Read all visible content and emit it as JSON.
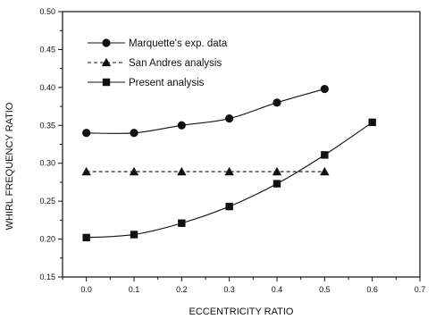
{
  "chart_data": {
    "type": "line",
    "xlabel": "ECCENTRICITY RATIO",
    "ylabel": "WHIRL FREQUENCY RATIO",
    "xlim": [
      -0.05,
      0.7
    ],
    "ylim": [
      0.15,
      0.5
    ],
    "x_ticks": [
      "0.0",
      "0.1",
      "0.2",
      "0.3",
      "0.4",
      "0.5",
      "0.6",
      "0.7"
    ],
    "y_ticks": [
      "0.15",
      "0.20",
      "0.25",
      "0.30",
      "0.35",
      "0.40",
      "0.45",
      "0.50"
    ],
    "grid": false,
    "legend_position": "top-left",
    "series": [
      {
        "name": "Marquette's exp. data",
        "marker": "circle",
        "line_style": "solid",
        "x": [
          0.0,
          0.1,
          0.2,
          0.3,
          0.4,
          0.5
        ],
        "y": [
          0.34,
          0.34,
          0.35,
          0.359,
          0.38,
          0.398
        ]
      },
      {
        "name": "San Andres analysis",
        "marker": "triangle",
        "line_style": "dashed",
        "x": [
          0.0,
          0.1,
          0.2,
          0.3,
          0.4,
          0.5
        ],
        "y": [
          0.289,
          0.289,
          0.289,
          0.289,
          0.289,
          0.289
        ]
      },
      {
        "name": "Present analysis",
        "marker": "square",
        "line_style": "solid",
        "x": [
          0.0,
          0.1,
          0.2,
          0.3,
          0.4,
          0.5,
          0.6
        ],
        "y": [
          0.202,
          0.206,
          0.221,
          0.243,
          0.273,
          0.311,
          0.354
        ]
      }
    ]
  }
}
